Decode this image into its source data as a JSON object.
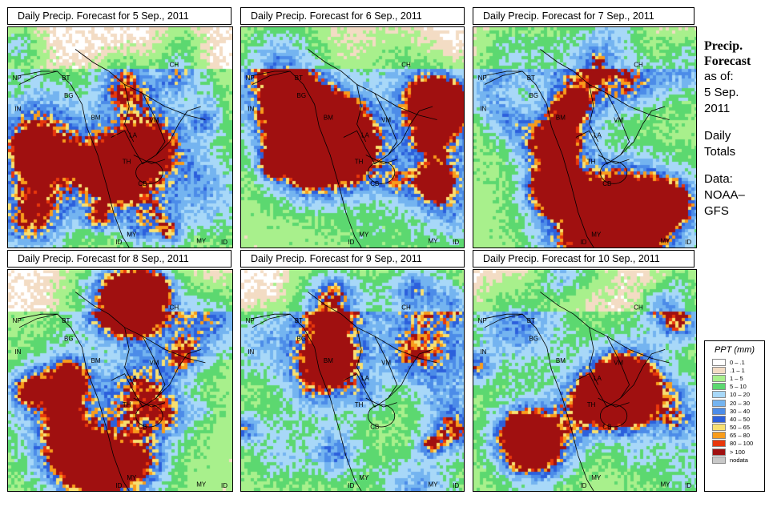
{
  "panels": [
    {
      "title": "Daily Precip. Forecast for  5 Sep., 2011",
      "seed": 11
    },
    {
      "title": "Daily Precip. Forecast for  6 Sep., 2011",
      "seed": 23
    },
    {
      "title": "Daily Precip. Forecast for  7 Sep., 2011",
      "seed": 37
    },
    {
      "title": "Daily Precip. Forecast for  8 Sep., 2011",
      "seed": 41
    },
    {
      "title": "Daily Precip. Forecast for  9 Sep., 2011",
      "seed": 53
    },
    {
      "title": "Daily Precip. Forecast for  10 Sep., 2011",
      "seed": 67
    }
  ],
  "country_labels": [
    "CH",
    "NP",
    "BT",
    "IN",
    "BG",
    "BM",
    "VM",
    "LA",
    "TH",
    "CB",
    "MY",
    "ID",
    "MY",
    "ID"
  ],
  "sidebar": {
    "heading_line1": "Precip.",
    "heading_line2": "Forecast",
    "asof_line1": "as of:",
    "asof_line2": "5 Sep.",
    "asof_line3": "2011",
    "daily_line1": "Daily",
    "daily_line2": "Totals",
    "data_line1": "Data:",
    "data_line2": "NOAA–",
    "data_line3": "GFS"
  },
  "legend": {
    "title": "PPT (mm)",
    "items": [
      {
        "label": "0 – .1",
        "color": "#ffffff"
      },
      {
        "label": ".1 – 1",
        "color": "#f3dcc4"
      },
      {
        "label": "1 – 5",
        "color": "#a8f08c"
      },
      {
        "label": "5 – 10",
        "color": "#5cd870"
      },
      {
        "label": "10 – 20",
        "color": "#a8d8f8"
      },
      {
        "label": "20 – 30",
        "color": "#74b4f0"
      },
      {
        "label": "30 – 40",
        "color": "#4c8ce8"
      },
      {
        "label": "40 – 50",
        "color": "#2c60dc"
      },
      {
        "label": "50 – 65",
        "color": "#f8e070"
      },
      {
        "label": "65 – 80",
        "color": "#f89c1c"
      },
      {
        "label": "80 – 100",
        "color": "#e8380c"
      },
      {
        "label": "> 100",
        "color": "#a01010"
      },
      {
        "label": "nodata",
        "color": "#c8c8c8"
      }
    ]
  }
}
